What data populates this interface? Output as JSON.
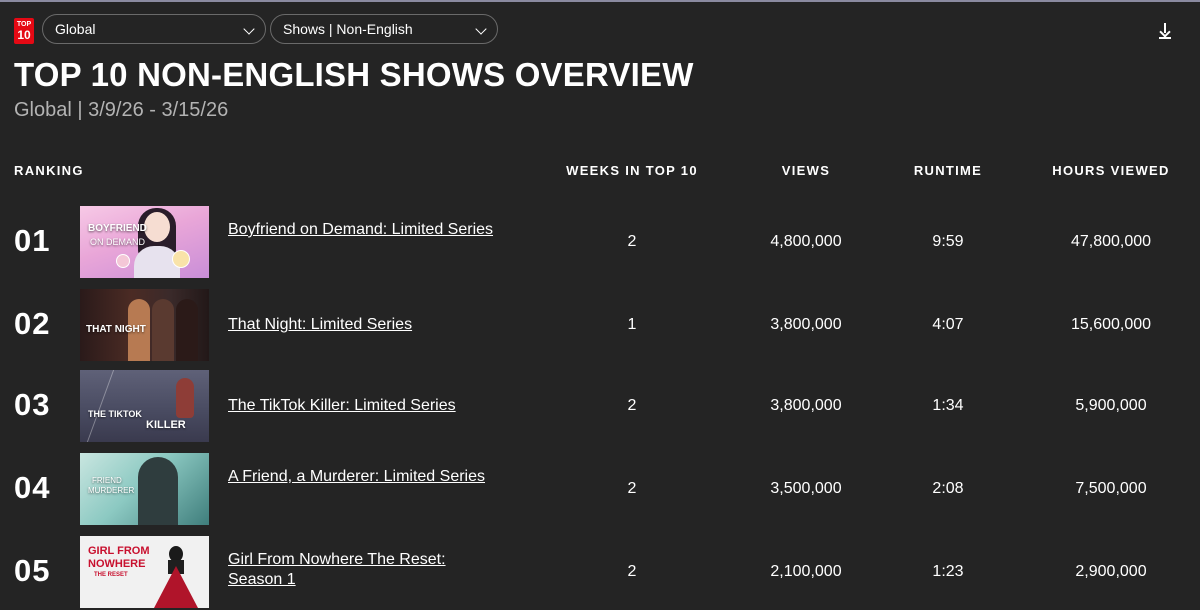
{
  "toolbar": {
    "logo_line1": "TOP",
    "logo_line2": "10",
    "region_select": "Global",
    "category_select": "Shows | Non-English"
  },
  "page": {
    "title": "TOP 10 NON-ENGLISH SHOWS OVERVIEW",
    "subtitle": "Global | 3/9/26 - 3/15/26"
  },
  "table": {
    "headers": {
      "ranking": "RANKING",
      "weeks": "WEEKS IN TOP 10",
      "views": "VIEWS",
      "runtime": "RUNTIME",
      "hours": "HOURS VIEWED"
    },
    "rows": [
      {
        "rank": "01",
        "title": "Boyfriend on Demand: Limited Series",
        "weeks": "2",
        "views": "4,800,000",
        "runtime": "9:59",
        "hours": "47,800,000",
        "thumb_text_1": "BOYFRIEND",
        "thumb_text_2": "ON DEMAND"
      },
      {
        "rank": "02",
        "title": "That Night: Limited Series",
        "weeks": "1",
        "views": "3,800,000",
        "runtime": "4:07",
        "hours": "15,600,000",
        "thumb_text_1": "THAT NIGHT"
      },
      {
        "rank": "03",
        "title": "The TikTok Killer: Limited Series",
        "weeks": "2",
        "views": "3,800,000",
        "runtime": "1:34",
        "hours": "5,900,000",
        "thumb_text_1": "THE TIKTOK",
        "thumb_text_2": "KILLER"
      },
      {
        "rank": "04",
        "title": "A Friend, a Murderer: Limited Series",
        "weeks": "2",
        "views": "3,500,000",
        "runtime": "2:08",
        "hours": "7,500,000",
        "thumb_text_1": "FRIEND",
        "thumb_text_2": "MURDERER"
      },
      {
        "rank": "05",
        "title": "Girl From Nowhere The Reset: Season 1",
        "weeks": "2",
        "views": "2,100,000",
        "runtime": "1:23",
        "hours": "2,900,000",
        "thumb_text_1": "GIRL FROM",
        "thumb_text_2": "NOWHERE",
        "thumb_text_3": "THE RESET"
      }
    ]
  },
  "colors": {
    "background": "#242424",
    "brand_red": "#e50914",
    "subtitle": "#b3b3b3"
  }
}
